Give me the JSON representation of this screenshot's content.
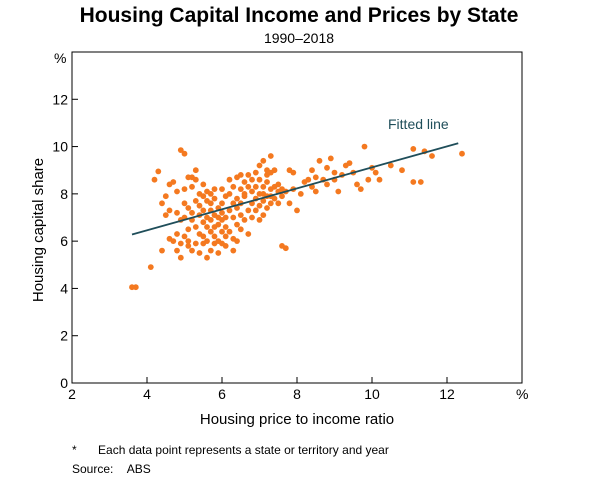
{
  "chart_data": {
    "type": "scatter",
    "title": "Housing Capital Income and Prices by State",
    "subtitle": "1990–2018",
    "xlabel": "Housing price to income ratio",
    "ylabel": "Housing capital share",
    "x_unit": "%",
    "y_unit": "%",
    "xlim": [
      2,
      14
    ],
    "ylim": [
      0,
      14
    ],
    "xticks": [
      2,
      4,
      6,
      8,
      10,
      12
    ],
    "yticks": [
      0,
      2,
      4,
      6,
      8,
      10,
      12
    ],
    "grid": false,
    "point_color": "#f47920",
    "line_color": "#1f4e5a",
    "fitted_line": {
      "label": "Fitted line",
      "x": [
        3.6,
        12.3
      ],
      "y": [
        6.28,
        10.14
      ]
    },
    "points": [
      [
        3.6,
        4.05
      ],
      [
        3.7,
        4.05
      ],
      [
        4.1,
        4.9
      ],
      [
        4.2,
        8.6
      ],
      [
        4.3,
        8.95
      ],
      [
        4.4,
        7.6
      ],
      [
        4.4,
        5.6
      ],
      [
        4.5,
        7.9
      ],
      [
        4.5,
        7.1
      ],
      [
        4.6,
        6.1
      ],
      [
        4.6,
        7.3
      ],
      [
        4.6,
        8.4
      ],
      [
        4.7,
        6.0
      ],
      [
        4.7,
        8.5
      ],
      [
        4.8,
        5.6
      ],
      [
        4.8,
        6.3
      ],
      [
        4.8,
        7.2
      ],
      [
        4.8,
        8.1
      ],
      [
        4.9,
        5.3
      ],
      [
        4.9,
        9.85
      ],
      [
        4.9,
        5.9
      ],
      [
        4.9,
        6.9
      ],
      [
        5.0,
        6.2
      ],
      [
        5.0,
        7.6
      ],
      [
        5.0,
        9.7
      ],
      [
        5.0,
        8.2
      ],
      [
        5.0,
        7.0
      ],
      [
        5.1,
        5.8
      ],
      [
        5.1,
        6.5
      ],
      [
        5.1,
        7.4
      ],
      [
        5.1,
        8.7
      ],
      [
        5.1,
        6.0
      ],
      [
        5.2,
        7.2
      ],
      [
        5.2,
        8.3
      ],
      [
        5.2,
        5.6
      ],
      [
        5.2,
        8.7
      ],
      [
        5.2,
        6.9
      ],
      [
        5.3,
        6.6
      ],
      [
        5.3,
        7.7
      ],
      [
        5.3,
        5.9
      ],
      [
        5.3,
        8.6
      ],
      [
        5.3,
        9.0
      ],
      [
        5.4,
        6.3
      ],
      [
        5.4,
        7.1
      ],
      [
        5.4,
        8.0
      ],
      [
        5.4,
        5.5
      ],
      [
        5.4,
        7.5
      ],
      [
        5.5,
        6.8
      ],
      [
        5.5,
        5.9
      ],
      [
        5.5,
        7.9
      ],
      [
        5.5,
        6.2
      ],
      [
        5.5,
        8.4
      ],
      [
        5.5,
        7.3
      ],
      [
        5.6,
        6.6
      ],
      [
        5.6,
        7.0
      ],
      [
        5.6,
        5.3
      ],
      [
        5.6,
        7.7
      ],
      [
        5.6,
        8.1
      ],
      [
        5.6,
        6.0
      ],
      [
        5.7,
        7.3
      ],
      [
        5.7,
        6.4
      ],
      [
        5.7,
        5.6
      ],
      [
        5.7,
        8.0
      ],
      [
        5.7,
        6.9
      ],
      [
        5.7,
        7.6
      ],
      [
        5.8,
        6.2
      ],
      [
        5.8,
        7.1
      ],
      [
        5.8,
        5.9
      ],
      [
        5.8,
        7.8
      ],
      [
        5.8,
        8.2
      ],
      [
        5.8,
        6.6
      ],
      [
        5.9,
        7.4
      ],
      [
        5.9,
        6.0
      ],
      [
        5.9,
        7.0
      ],
      [
        5.9,
        5.5
      ],
      [
        5.9,
        6.7
      ],
      [
        6.0,
        7.2
      ],
      [
        6.0,
        6.4
      ],
      [
        6.0,
        8.2
      ],
      [
        6.0,
        5.9
      ],
      [
        6.0,
        7.6
      ],
      [
        6.0,
        6.9
      ],
      [
        6.1,
        7.0
      ],
      [
        6.1,
        6.2
      ],
      [
        6.1,
        7.9
      ],
      [
        6.1,
        5.8
      ],
      [
        6.1,
        6.6
      ],
      [
        6.2,
        7.3
      ],
      [
        6.2,
        8.0
      ],
      [
        6.2,
        6.4
      ],
      [
        6.2,
        8.6
      ],
      [
        6.3,
        7.0
      ],
      [
        6.3,
        6.1
      ],
      [
        6.3,
        7.6
      ],
      [
        6.3,
        8.3
      ],
      [
        6.3,
        5.6
      ],
      [
        6.4,
        6.7
      ],
      [
        6.4,
        7.4
      ],
      [
        6.4,
        8.7
      ],
      [
        6.4,
        6.0
      ],
      [
        6.4,
        7.8
      ],
      [
        6.5,
        8.2
      ],
      [
        6.5,
        6.5
      ],
      [
        6.5,
        7.1
      ],
      [
        6.5,
        8.8
      ],
      [
        6.5,
        7.6
      ],
      [
        6.6,
        8.5
      ],
      [
        6.6,
        6.9
      ],
      [
        6.6,
        7.9
      ],
      [
        6.6,
        8.0
      ],
      [
        6.7,
        8.8
      ],
      [
        6.7,
        7.3
      ],
      [
        6.7,
        8.3
      ],
      [
        6.7,
        6.3
      ],
      [
        6.8,
        8.6
      ],
      [
        6.8,
        7.6
      ],
      [
        6.8,
        8.1
      ],
      [
        6.8,
        7.0
      ],
      [
        6.9,
        8.9
      ],
      [
        6.9,
        7.8
      ],
      [
        6.9,
        8.3
      ],
      [
        6.9,
        7.3
      ],
      [
        7.0,
        9.2
      ],
      [
        7.0,
        8.0
      ],
      [
        7.0,
        7.5
      ],
      [
        7.0,
        8.6
      ],
      [
        7.0,
        6.9
      ],
      [
        7.1,
        8.3
      ],
      [
        7.1,
        7.7
      ],
      [
        7.1,
        9.4
      ],
      [
        7.1,
        8.0
      ],
      [
        7.1,
        7.1
      ],
      [
        7.2,
        8.8
      ],
      [
        7.2,
        7.9
      ],
      [
        7.2,
        8.5
      ],
      [
        7.2,
        7.4
      ],
      [
        7.2,
        9.0
      ],
      [
        7.3,
        8.2
      ],
      [
        7.3,
        7.6
      ],
      [
        7.3,
        8.9
      ],
      [
        7.3,
        9.6
      ],
      [
        7.3,
        7.9
      ],
      [
        7.4,
        8.3
      ],
      [
        7.4,
        7.8
      ],
      [
        7.4,
        9.0
      ],
      [
        7.5,
        8.1
      ],
      [
        7.5,
        7.6
      ],
      [
        7.5,
        8.4
      ],
      [
        7.6,
        5.8
      ],
      [
        7.6,
        8.2
      ],
      [
        7.6,
        7.9
      ],
      [
        7.7,
        5.7
      ],
      [
        7.7,
        8.1
      ],
      [
        7.8,
        7.6
      ],
      [
        7.8,
        9.0
      ],
      [
        7.9,
        8.2
      ],
      [
        7.9,
        8.9
      ],
      [
        8.0,
        7.3
      ],
      [
        8.1,
        8.0
      ],
      [
        8.2,
        8.5
      ],
      [
        8.3,
        8.6
      ],
      [
        8.4,
        9.0
      ],
      [
        8.4,
        8.3
      ],
      [
        8.5,
        8.7
      ],
      [
        8.5,
        8.1
      ],
      [
        8.6,
        9.4
      ],
      [
        8.7,
        8.6
      ],
      [
        8.8,
        9.1
      ],
      [
        8.8,
        8.4
      ],
      [
        8.9,
        9.5
      ],
      [
        9.0,
        8.9
      ],
      [
        9.0,
        8.6
      ],
      [
        9.1,
        8.1
      ],
      [
        9.2,
        8.8
      ],
      [
        9.3,
        9.2
      ],
      [
        9.4,
        9.3
      ],
      [
        9.5,
        8.9
      ],
      [
        9.6,
        8.4
      ],
      [
        9.7,
        8.2
      ],
      [
        9.8,
        10.0
      ],
      [
        9.9,
        8.6
      ],
      [
        10.0,
        9.1
      ],
      [
        10.1,
        8.9
      ],
      [
        10.2,
        8.6
      ],
      [
        10.5,
        9.2
      ],
      [
        10.8,
        9.0
      ],
      [
        11.1,
        9.9
      ],
      [
        11.1,
        8.5
      ],
      [
        11.3,
        8.5
      ],
      [
        11.4,
        9.8
      ],
      [
        11.6,
        9.6
      ],
      [
        12.4,
        9.7
      ]
    ],
    "annotations": [
      "Fitted line"
    ]
  },
  "footnote": {
    "marker": "*",
    "text": "Each data point represents a state or territory and year"
  },
  "source": {
    "label": "Source:",
    "text": "ABS"
  }
}
